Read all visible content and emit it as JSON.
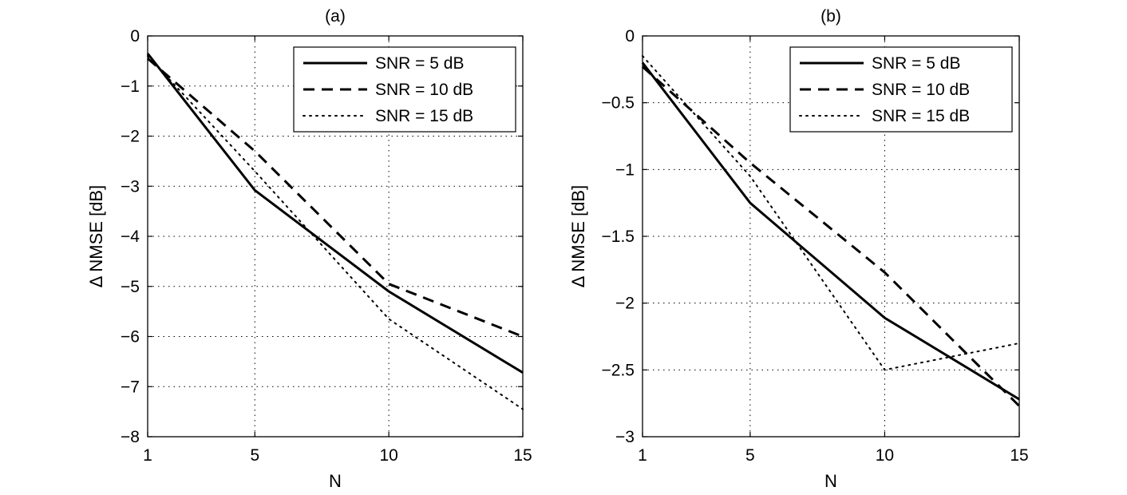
{
  "chart_data": [
    {
      "type": "line",
      "title": "(a)",
      "xlabel": "N",
      "ylabel": "Δ NMSE [dB]",
      "x": [
        1,
        5,
        10,
        15
      ],
      "xlim": [
        1,
        15
      ],
      "ylim": [
        -8,
        0
      ],
      "xticks": [
        "1",
        "5",
        "10",
        "15"
      ],
      "yticks": [
        "0",
        "−1",
        "−2",
        "−3",
        "−4",
        "−5",
        "−6",
        "−7",
        "−8"
      ],
      "grid": true,
      "legend_position": "top-right",
      "series": [
        {
          "name": "SNR = 5 dB",
          "style": "solid",
          "values": [
            -0.35,
            -3.08,
            -5.1,
            -6.72
          ]
        },
        {
          "name": "SNR = 10 dB",
          "style": "dashed",
          "values": [
            -0.45,
            -2.3,
            -4.95,
            -6.0
          ]
        },
        {
          "name": "SNR = 15 dB",
          "style": "dotted",
          "values": [
            -0.4,
            -2.7,
            -5.65,
            -7.45
          ]
        }
      ]
    },
    {
      "type": "line",
      "title": "(b)",
      "xlabel": "N",
      "ylabel": "Δ NMSE [dB]",
      "x": [
        1,
        5,
        10,
        15
      ],
      "xlim": [
        1,
        15
      ],
      "ylim": [
        -3,
        0
      ],
      "xticks": [
        "1",
        "5",
        "10",
        "15"
      ],
      "yticks": [
        "0",
        "−0.5",
        "−1",
        "−1.5",
        "−2",
        "−2.5",
        "−3"
      ],
      "grid": true,
      "legend_position": "top-right",
      "series": [
        {
          "name": "SNR = 5 dB",
          "style": "solid",
          "values": [
            -0.2,
            -1.25,
            -2.11,
            -2.72
          ]
        },
        {
          "name": "SNR = 10 dB",
          "style": "dashed",
          "values": [
            -0.23,
            -0.95,
            -1.77,
            -2.77
          ]
        },
        {
          "name": "SNR = 15 dB",
          "style": "dotted",
          "values": [
            -0.15,
            -1.05,
            -2.5,
            -2.3
          ]
        }
      ]
    }
  ]
}
